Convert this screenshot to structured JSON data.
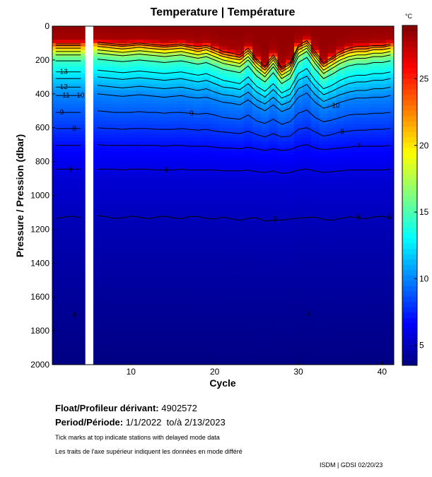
{
  "chart_data": {
    "type": "heatmap",
    "title": "Temperature | Température",
    "xlabel": "Cycle",
    "ylabel": "Pressure / Pression (dbar)",
    "xlim": [
      0.6,
      41.4
    ],
    "ylim": [
      2000,
      0
    ],
    "xticks": [
      10,
      20,
      30,
      40
    ],
    "yticks": [
      0,
      200,
      400,
      600,
      800,
      1000,
      1200,
      1400,
      1600,
      1800,
      2000
    ],
    "missing_cycles": [
      5
    ],
    "colorbar": {
      "label": "°C",
      "range": [
        3.5,
        29
      ],
      "ticks": [
        5,
        10,
        15,
        20,
        25
      ],
      "colormap": "jet"
    },
    "mean_profile": {
      "pressure": [
        0,
        70,
        90,
        110,
        150,
        200,
        300,
        400,
        500,
        600,
        700,
        900,
        1200,
        1500,
        1700,
        2000
      ],
      "temperature": [
        28.5,
        28.0,
        25.5,
        22,
        17.5,
        14.5,
        12.0,
        10.0,
        9.0,
        8.0,
        7.0,
        5.6,
        4.8,
        4.3,
        4.0,
        3.6
      ]
    },
    "cycle_depth_shift_dbar": [
      10,
      10,
      10,
      10,
      0,
      0,
      5,
      10,
      15,
      10,
      5,
      10,
      15,
      20,
      15,
      10,
      20,
      30,
      20,
      40,
      60,
      70,
      80,
      40,
      100,
      140,
      80,
      150,
      120,
      20,
      -10,
      60,
      120,
      90,
      60,
      40,
      30,
      30,
      20,
      20,
      10
    ],
    "contour_levels": [
      5,
      6,
      7,
      8,
      9,
      10,
      11,
      12,
      13,
      15,
      17,
      19,
      21,
      23,
      25
    ],
    "contour_labels": [
      {
        "level": 13,
        "cycle": 1.5
      },
      {
        "level": 12,
        "cycle": 1.5
      },
      {
        "level": 11,
        "cycle": 1.8
      },
      {
        "level": 10,
        "cycle": 3.5
      },
      {
        "level": 10,
        "cycle": 34
      },
      {
        "level": 9,
        "cycle": 17
      },
      {
        "level": 9,
        "cycle": 1.5
      },
      {
        "level": 8,
        "cycle": 3
      },
      {
        "level": 8,
        "cycle": 35
      },
      {
        "level": 7,
        "cycle": 37
      },
      {
        "level": 6,
        "cycle": 2.5
      },
      {
        "level": 6,
        "cycle": 14
      },
      {
        "level": 5,
        "cycle": 27
      },
      {
        "level": 5,
        "cycle": 37
      },
      {
        "level": 5,
        "cycle": 41
      },
      {
        "level": 4,
        "cycle": 3
      },
      {
        "level": 4,
        "cycle": 31
      }
    ]
  },
  "info": {
    "float_label": "Float/Profileur dérivant:",
    "float_id": "4902572",
    "period_label": "Period/Période:",
    "period_start": "1/1/2022",
    "period_sep": "to/à",
    "period_end": "2/13/2023",
    "note_en": "Tick marks at top indicate stations with delayed mode data",
    "note_fr": "Les traits de l'axe supérieur indiquent les données en mode différé",
    "credit": "ISDM | GDSI  02/20/23"
  }
}
